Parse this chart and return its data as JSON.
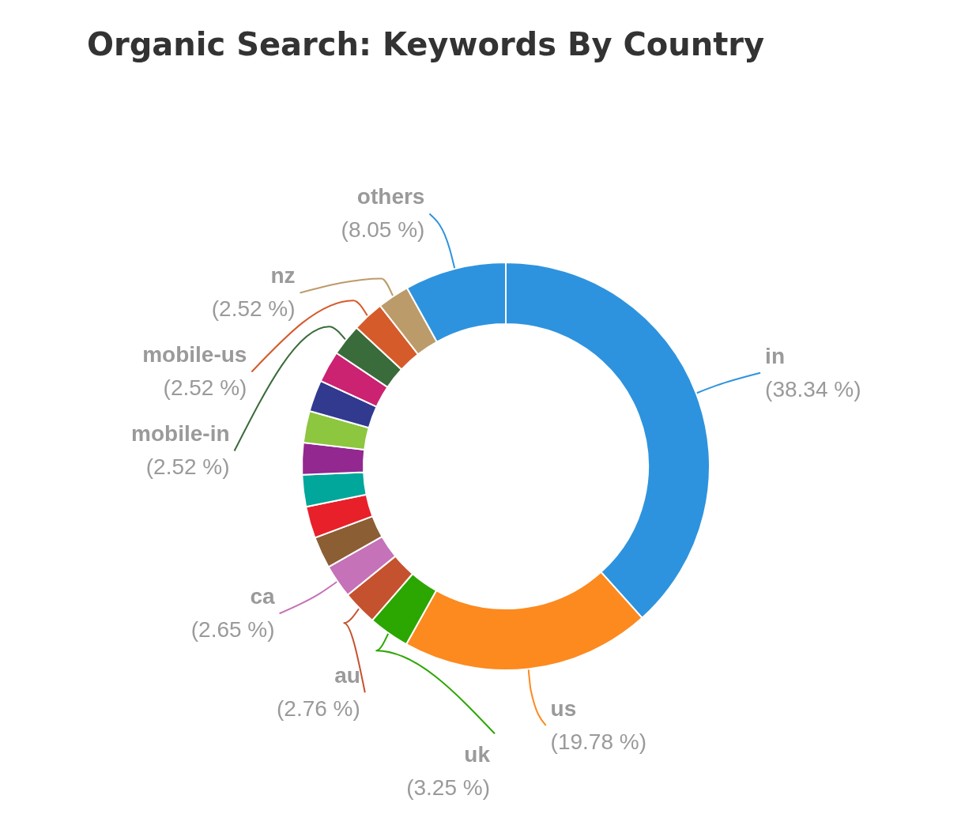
{
  "chart_data": {
    "type": "donut",
    "title": "Organic Search: Keywords By Country",
    "categories": [
      "in",
      "us",
      "uk",
      "au",
      "ca",
      null,
      null,
      null,
      null,
      null,
      null,
      null,
      "mobile-in",
      "mobile-us",
      "nz",
      "others"
    ],
    "values": [
      38.34,
      19.78,
      3.25,
      2.76,
      2.65,
      2.52,
      2.52,
      2.52,
      2.52,
      2.51,
      2.51,
      2.51,
      2.52,
      2.52,
      2.52,
      8.05
    ],
    "value_labels": [
      "(38.34 %)",
      "(19.78 %)",
      "(3.25 %)",
      "(2.76 %)",
      "(2.65 %)",
      null,
      null,
      null,
      null,
      null,
      null,
      null,
      "(2.52 %)",
      "(2.52 %)",
      "(2.52 %)",
      "(8.05 %)"
    ],
    "colors": [
      "#2e93de",
      "#fc8a1f",
      "#2ca600",
      "#c5522e",
      "#c572b8",
      "#8b5e34",
      "#e8202a",
      "#00a79a",
      "#922890",
      "#8dc63f",
      "#313a8f",
      "#cc2272",
      "#3a6b3a",
      "#d65b2b",
      "#bc9b6a",
      "#2e93de"
    ],
    "legend": false
  }
}
